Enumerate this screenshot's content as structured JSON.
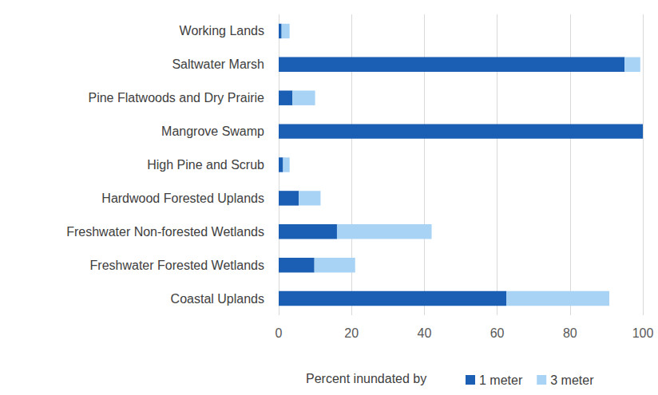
{
  "chart_data": {
    "type": "bar",
    "orientation": "horizontal",
    "stacked": true,
    "xlabel": "Percent inundated by",
    "categories": [
      "Working Lands",
      "Saltwater Marsh",
      "Pine Flatwoods and Dry Prairie",
      "Mangrove Swamp",
      "High Pine and Scrub",
      "Hardwood Forested Uplands",
      "Freshwater Non-forested Wetlands",
      "Freshwater Forested Wetlands",
      "Coastal Uplands"
    ],
    "series": [
      {
        "name": "1 meter",
        "color": "#1a5fb4",
        "values": [
          0.8,
          95,
          3.8,
          100,
          1.2,
          5.5,
          16,
          9.8,
          62.5
        ]
      },
      {
        "name": "3 meter",
        "color": "#a9d3f5",
        "values": [
          2.2,
          4.3,
          6.2,
          0,
          1.8,
          6,
          26,
          11.2,
          28.3
        ]
      }
    ],
    "xlim": [
      0,
      100
    ],
    "xticks": [
      0,
      20,
      40,
      60,
      80,
      100
    ],
    "grid": true,
    "legend": "bottom"
  }
}
